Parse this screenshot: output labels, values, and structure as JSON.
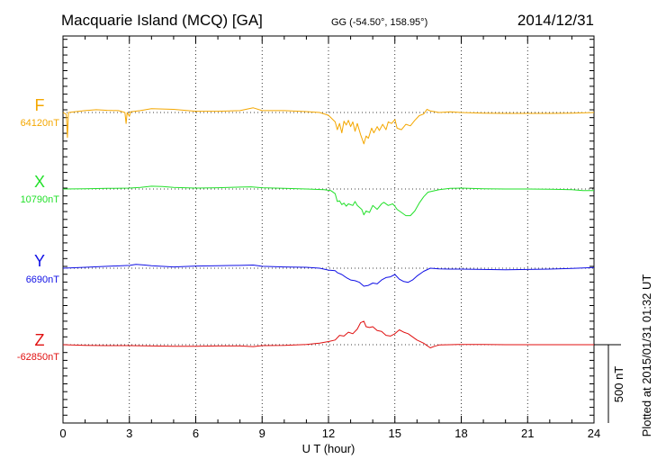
{
  "header": {
    "station": "Macquarie Island (MCQ)  [GA]",
    "coords": "GG (-54.50°, 158.95°)",
    "date": "2014/12/31"
  },
  "footer": {
    "plotted": "Plotted at 2015/01/31 01:32 UT"
  },
  "chart_data": {
    "type": "line",
    "xlabel": "U T (hour)",
    "xlim": [
      0,
      24
    ],
    "xticks": [
      0,
      3,
      6,
      9,
      12,
      15,
      18,
      21,
      24
    ],
    "scale_bar": "500 nT",
    "scale_nT": 500,
    "grid": true,
    "series": [
      {
        "name": "F",
        "baseline_label": "64120nT",
        "color": "#f4a700",
        "points": [
          [
            0,
            0
          ],
          [
            0.15,
            -12
          ],
          [
            0.2,
            -160
          ],
          [
            0.25,
            0
          ],
          [
            0.5,
            4
          ],
          [
            1,
            12
          ],
          [
            1.5,
            18
          ],
          [
            2,
            14
          ],
          [
            2.5,
            12
          ],
          [
            2.8,
            0
          ],
          [
            2.85,
            -70
          ],
          [
            2.9,
            0
          ],
          [
            3,
            -25
          ],
          [
            3.05,
            4
          ],
          [
            3.5,
            12
          ],
          [
            4,
            24
          ],
          [
            5,
            20
          ],
          [
            6,
            8
          ],
          [
            7,
            8
          ],
          [
            8,
            12
          ],
          [
            8.6,
            30
          ],
          [
            9,
            12
          ],
          [
            10,
            12
          ],
          [
            11,
            6
          ],
          [
            11.6,
            0
          ],
          [
            12,
            -18
          ],
          [
            12.3,
            -60
          ],
          [
            12.4,
            -110
          ],
          [
            12.5,
            -70
          ],
          [
            12.6,
            -130
          ],
          [
            12.7,
            -55
          ],
          [
            12.8,
            -80
          ],
          [
            12.9,
            -50
          ],
          [
            13,
            -90
          ],
          [
            13.1,
            -60
          ],
          [
            13.2,
            -120
          ],
          [
            13.3,
            -70
          ],
          [
            13.45,
            -140
          ],
          [
            13.6,
            -200
          ],
          [
            13.7,
            -150
          ],
          [
            13.8,
            -165
          ],
          [
            13.95,
            -100
          ],
          [
            14.05,
            -130
          ],
          [
            14.2,
            -90
          ],
          [
            14.3,
            -115
          ],
          [
            14.45,
            -75
          ],
          [
            14.6,
            -110
          ],
          [
            14.7,
            -60
          ],
          [
            14.85,
            -70
          ],
          [
            15,
            -45
          ],
          [
            15.1,
            -100
          ],
          [
            15.3,
            -110
          ],
          [
            15.5,
            -75
          ],
          [
            15.7,
            -85
          ],
          [
            15.9,
            -50
          ],
          [
            16.1,
            -20
          ],
          [
            16.3,
            -10
          ],
          [
            16.45,
            20
          ],
          [
            16.6,
            10
          ],
          [
            17,
            0
          ],
          [
            17.5,
            4
          ],
          [
            18,
            0
          ],
          [
            19,
            -4
          ],
          [
            20,
            -6
          ],
          [
            21,
            -6
          ],
          [
            22,
            -6
          ],
          [
            23,
            -4
          ],
          [
            24,
            0
          ]
        ]
      },
      {
        "name": "X",
        "baseline_label": "10790nT",
        "color": "#22e02a",
        "points": [
          [
            0,
            0
          ],
          [
            1,
            2
          ],
          [
            2,
            4
          ],
          [
            3,
            6
          ],
          [
            3.5,
            10
          ],
          [
            4,
            18
          ],
          [
            4.5,
            16
          ],
          [
            5,
            10
          ],
          [
            6,
            6
          ],
          [
            7,
            8
          ],
          [
            7.5,
            10
          ],
          [
            8,
            12
          ],
          [
            8.5,
            14
          ],
          [
            9,
            8
          ],
          [
            10,
            4
          ],
          [
            11,
            0
          ],
          [
            11.8,
            -4
          ],
          [
            12.1,
            -10
          ],
          [
            12.3,
            -30
          ],
          [
            12.4,
            -80
          ],
          [
            12.5,
            -75
          ],
          [
            12.6,
            -100
          ],
          [
            12.7,
            -90
          ],
          [
            12.8,
            -110
          ],
          [
            12.9,
            -95
          ],
          [
            13.1,
            -105
          ],
          [
            13.2,
            -80
          ],
          [
            13.3,
            -105
          ],
          [
            13.5,
            -130
          ],
          [
            13.6,
            -165
          ],
          [
            13.7,
            -140
          ],
          [
            13.85,
            -150
          ],
          [
            14,
            -105
          ],
          [
            14.2,
            -130
          ],
          [
            14.4,
            -95
          ],
          [
            14.5,
            -85
          ],
          [
            14.7,
            -105
          ],
          [
            14.9,
            -95
          ],
          [
            15,
            -110
          ],
          [
            15.1,
            -130
          ],
          [
            15.3,
            -150
          ],
          [
            15.5,
            -170
          ],
          [
            15.7,
            -170
          ],
          [
            15.9,
            -140
          ],
          [
            16.1,
            -90
          ],
          [
            16.3,
            -50
          ],
          [
            16.5,
            -20
          ],
          [
            17,
            -4
          ],
          [
            17.5,
            4
          ],
          [
            18,
            6
          ],
          [
            19,
            2
          ],
          [
            20,
            0
          ],
          [
            21,
            0
          ],
          [
            22,
            -2
          ],
          [
            23,
            -4
          ],
          [
            23.5,
            -10
          ],
          [
            24,
            -10
          ]
        ]
      },
      {
        "name": "Y",
        "baseline_label": "6690nT",
        "color": "#1010e6",
        "points": [
          [
            0,
            0
          ],
          [
            1,
            6
          ],
          [
            2,
            12
          ],
          [
            3,
            18
          ],
          [
            3.3,
            24
          ],
          [
            3.7,
            20
          ],
          [
            4,
            16
          ],
          [
            5,
            8
          ],
          [
            6,
            14
          ],
          [
            7,
            16
          ],
          [
            8,
            18
          ],
          [
            8.6,
            20
          ],
          [
            9,
            12
          ],
          [
            10,
            8
          ],
          [
            11,
            6
          ],
          [
            11.6,
            0
          ],
          [
            12,
            -12
          ],
          [
            12.3,
            -16
          ],
          [
            12.4,
            -28
          ],
          [
            12.6,
            -40
          ],
          [
            12.8,
            -60
          ],
          [
            13,
            -75
          ],
          [
            13.2,
            -80
          ],
          [
            13.4,
            -90
          ],
          [
            13.6,
            -115
          ],
          [
            13.8,
            -110
          ],
          [
            14,
            -95
          ],
          [
            14.2,
            -100
          ],
          [
            14.4,
            -75
          ],
          [
            14.6,
            -60
          ],
          [
            14.8,
            -55
          ],
          [
            15,
            -40
          ],
          [
            15.2,
            -70
          ],
          [
            15.4,
            -85
          ],
          [
            15.6,
            -90
          ],
          [
            15.8,
            -75
          ],
          [
            16,
            -50
          ],
          [
            16.3,
            -20
          ],
          [
            16.6,
            0
          ],
          [
            17,
            -4
          ],
          [
            17.5,
            -6
          ],
          [
            18,
            -6
          ],
          [
            19,
            -8
          ],
          [
            20,
            -10
          ],
          [
            21,
            -8
          ],
          [
            22,
            -6
          ],
          [
            23,
            -2
          ],
          [
            24,
            4
          ]
        ]
      },
      {
        "name": "Z",
        "baseline_label": "-62850nT",
        "color": "#e01010",
        "points": [
          [
            0,
            0
          ],
          [
            1,
            -4
          ],
          [
            2,
            -6
          ],
          [
            3,
            -6
          ],
          [
            4,
            -8
          ],
          [
            5,
            -10
          ],
          [
            6,
            -10
          ],
          [
            7,
            -8
          ],
          [
            8,
            -8
          ],
          [
            8.6,
            -12
          ],
          [
            9,
            -6
          ],
          [
            10,
            -4
          ],
          [
            11,
            2
          ],
          [
            11.6,
            10
          ],
          [
            12,
            20
          ],
          [
            12.3,
            30
          ],
          [
            12.5,
            60
          ],
          [
            12.7,
            55
          ],
          [
            12.9,
            80
          ],
          [
            13.1,
            70
          ],
          [
            13.3,
            100
          ],
          [
            13.45,
            140
          ],
          [
            13.6,
            150
          ],
          [
            13.7,
            115
          ],
          [
            13.85,
            110
          ],
          [
            14,
            115
          ],
          [
            14.2,
            90
          ],
          [
            14.4,
            85
          ],
          [
            14.6,
            60
          ],
          [
            14.8,
            55
          ],
          [
            15,
            70
          ],
          [
            15.2,
            95
          ],
          [
            15.4,
            80
          ],
          [
            15.6,
            70
          ],
          [
            15.8,
            50
          ],
          [
            16,
            30
          ],
          [
            16.3,
            10
          ],
          [
            16.6,
            -20
          ],
          [
            16.8,
            -10
          ],
          [
            17,
            -2
          ],
          [
            17.5,
            0
          ],
          [
            18,
            2
          ],
          [
            19,
            2
          ],
          [
            20,
            0
          ],
          [
            21,
            0
          ],
          [
            22,
            0
          ],
          [
            23,
            0
          ],
          [
            24,
            0
          ]
        ]
      }
    ]
  }
}
